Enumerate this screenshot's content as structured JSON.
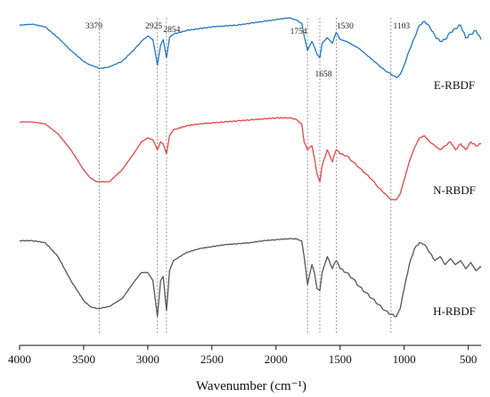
{
  "chart_data": {
    "type": "line",
    "title": "",
    "xlabel": "Wavenumber (cm⁻¹)",
    "ylabel": "",
    "xlim": [
      4000,
      400
    ],
    "x_reversed": true,
    "xticks": [
      4000,
      3500,
      3000,
      2500,
      2000,
      1500,
      1000,
      500
    ],
    "grid": false,
    "legend": "none",
    "markers": [
      {
        "x": 3379,
        "label": "3379"
      },
      {
        "x": 2925,
        "label": "2925"
      },
      {
        "x": 2854,
        "label": "2854"
      },
      {
        "x": 1754,
        "label": "1754"
      },
      {
        "x": 1658,
        "label": "1658"
      },
      {
        "x": 1530,
        "label": "1530"
      },
      {
        "x": 1103,
        "label": "1103"
      }
    ],
    "series": [
      {
        "name": "E-RBDF",
        "color": "#1f77c4",
        "x": [
          4000,
          3900,
          3800,
          3700,
          3600,
          3500,
          3450,
          3400,
          3379,
          3300,
          3200,
          3100,
          3050,
          3000,
          2960,
          2925,
          2900,
          2880,
          2854,
          2830,
          2800,
          2700,
          2600,
          2500,
          2400,
          2300,
          2200,
          2100,
          2000,
          1900,
          1850,
          1800,
          1780,
          1754,
          1720,
          1700,
          1680,
          1658,
          1640,
          1600,
          1560,
          1530,
          1500,
          1450,
          1400,
          1350,
          1300,
          1250,
          1200,
          1150,
          1103,
          1060,
          1030,
          1000,
          960,
          920,
          880,
          840,
          800,
          760,
          720,
          680,
          640,
          600,
          560,
          520,
          480,
          440,
          400
        ],
        "y": [
          0.96,
          0.965,
          0.95,
          0.89,
          0.82,
          0.76,
          0.74,
          0.73,
          0.72,
          0.73,
          0.76,
          0.83,
          0.87,
          0.9,
          0.88,
          0.74,
          0.85,
          0.88,
          0.78,
          0.89,
          0.91,
          0.93,
          0.94,
          0.95,
          0.955,
          0.96,
          0.97,
          0.98,
          0.99,
          1.0,
          0.99,
          0.97,
          0.9,
          0.82,
          0.87,
          0.84,
          0.8,
          0.78,
          0.86,
          0.89,
          0.86,
          0.92,
          0.88,
          0.87,
          0.85,
          0.83,
          0.8,
          0.77,
          0.74,
          0.71,
          0.69,
          0.67,
          0.69,
          0.74,
          0.82,
          0.89,
          0.96,
          0.98,
          0.95,
          0.9,
          0.87,
          0.88,
          0.92,
          0.94,
          0.96,
          0.89,
          0.91,
          0.93,
          0.88
        ]
      },
      {
        "name": "N-RBDF",
        "color": "#e64545",
        "x": [
          4000,
          3900,
          3800,
          3700,
          3600,
          3500,
          3450,
          3400,
          3379,
          3300,
          3200,
          3100,
          3050,
          3000,
          2960,
          2925,
          2900,
          2880,
          2854,
          2830,
          2800,
          2700,
          2600,
          2500,
          2400,
          2300,
          2200,
          2100,
          2000,
          1900,
          1850,
          1800,
          1780,
          1754,
          1720,
          1700,
          1680,
          1658,
          1640,
          1600,
          1560,
          1530,
          1500,
          1450,
          1400,
          1350,
          1300,
          1250,
          1200,
          1150,
          1103,
          1060,
          1030,
          1000,
          960,
          920,
          880,
          840,
          800,
          760,
          720,
          680,
          640,
          600,
          560,
          520,
          480,
          440,
          400
        ],
        "y": [
          0.96,
          0.96,
          0.95,
          0.9,
          0.82,
          0.72,
          0.68,
          0.66,
          0.66,
          0.66,
          0.72,
          0.81,
          0.86,
          0.88,
          0.87,
          0.82,
          0.86,
          0.85,
          0.8,
          0.89,
          0.92,
          0.94,
          0.95,
          0.955,
          0.96,
          0.965,
          0.97,
          0.975,
          0.98,
          0.98,
          0.975,
          0.95,
          0.86,
          0.82,
          0.84,
          0.78,
          0.7,
          0.66,
          0.74,
          0.82,
          0.76,
          0.82,
          0.8,
          0.79,
          0.76,
          0.73,
          0.7,
          0.67,
          0.63,
          0.6,
          0.57,
          0.57,
          0.6,
          0.67,
          0.76,
          0.83,
          0.88,
          0.89,
          0.86,
          0.84,
          0.82,
          0.84,
          0.86,
          0.82,
          0.85,
          0.82,
          0.86,
          0.84,
          0.85
        ]
      },
      {
        "name": "H-RBDF",
        "color": "#555555",
        "x": [
          4000,
          3900,
          3800,
          3700,
          3600,
          3500,
          3450,
          3400,
          3379,
          3300,
          3200,
          3100,
          3050,
          3000,
          2960,
          2925,
          2900,
          2880,
          2854,
          2830,
          2800,
          2700,
          2600,
          2500,
          2400,
          2300,
          2200,
          2100,
          2000,
          1900,
          1850,
          1800,
          1780,
          1754,
          1720,
          1700,
          1680,
          1658,
          1640,
          1600,
          1560,
          1530,
          1500,
          1450,
          1400,
          1350,
          1300,
          1250,
          1200,
          1150,
          1103,
          1060,
          1030,
          1000,
          960,
          920,
          880,
          840,
          800,
          760,
          720,
          680,
          640,
          600,
          560,
          520,
          480,
          440,
          400
        ],
        "y": [
          0.9,
          0.9,
          0.89,
          0.82,
          0.7,
          0.6,
          0.57,
          0.56,
          0.56,
          0.57,
          0.61,
          0.7,
          0.74,
          0.74,
          0.7,
          0.52,
          0.7,
          0.72,
          0.55,
          0.75,
          0.8,
          0.84,
          0.86,
          0.87,
          0.88,
          0.885,
          0.89,
          0.9,
          0.905,
          0.91,
          0.91,
          0.9,
          0.82,
          0.68,
          0.78,
          0.74,
          0.66,
          0.65,
          0.74,
          0.82,
          0.76,
          0.8,
          0.76,
          0.74,
          0.71,
          0.67,
          0.64,
          0.61,
          0.58,
          0.55,
          0.53,
          0.52,
          0.56,
          0.66,
          0.78,
          0.86,
          0.89,
          0.88,
          0.84,
          0.8,
          0.82,
          0.78,
          0.81,
          0.78,
          0.8,
          0.76,
          0.79,
          0.75,
          0.77
        ]
      }
    ]
  }
}
